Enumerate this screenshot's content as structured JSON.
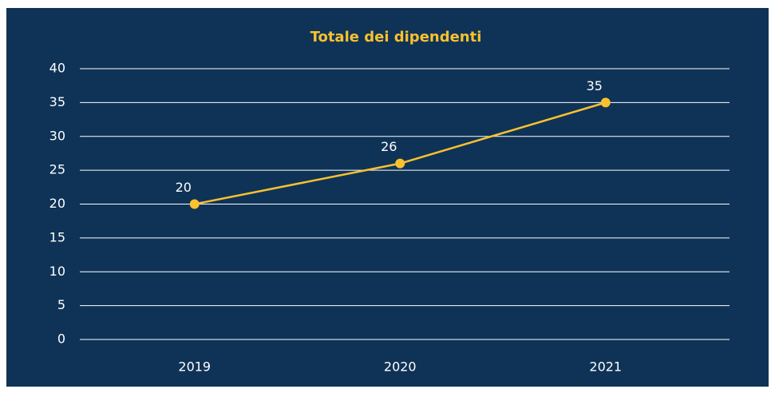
{
  "chart_data": {
    "type": "line",
    "title": "Totale dei dipendenti",
    "categories": [
      "2019",
      "2020",
      "2021"
    ],
    "series": [
      {
        "name": "Totale dei dipendenti",
        "color": "#f9c12e",
        "values": [
          20,
          26,
          35
        ]
      }
    ],
    "ylim": [
      0,
      40
    ],
    "yticks": [
      0,
      5,
      10,
      15,
      20,
      25,
      30,
      35,
      40
    ],
    "grid": true,
    "background": "#0f3357",
    "title_color": "#f9c12e"
  }
}
